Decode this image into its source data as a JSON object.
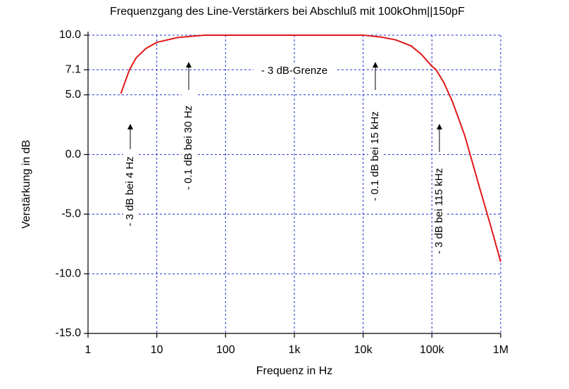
{
  "chart_data": {
    "type": "line",
    "title": "Frequenzgang des Line-Verstärkers bei Abschluß mit 100kOhm||150pF",
    "x_label": "Frequenz in Hz",
    "y_label": "Verstärkung in dB",
    "x_scale": "log",
    "grid": true,
    "x": [
      3,
      4,
      5,
      7,
      10,
      20,
      30,
      50,
      100,
      1000,
      10000,
      15000,
      20000,
      30000,
      50000,
      70000,
      100000,
      115000,
      150000,
      200000,
      300000,
      500000,
      700000,
      1000000
    ],
    "series": [
      {
        "name": "Verstärkung",
        "color": "#e01818",
        "values": [
          5.1,
          7.1,
          8.1,
          8.9,
          9.4,
          9.8,
          9.9,
          10.0,
          10.0,
          10.0,
          10.0,
          9.9,
          9.8,
          9.6,
          9.1,
          8.4,
          7.4,
          7.1,
          6.0,
          4.4,
          1.6,
          -2.9,
          -5.8,
          -9.0
        ]
      }
    ],
    "xlim": [
      1,
      1000000
    ],
    "xticks": [
      1,
      10,
      100,
      {
        "value": 1000,
        "label": "1k"
      },
      {
        "value": 10000,
        "label": "10k"
      },
      {
        "value": 100000,
        "label": "100k"
      },
      {
        "value": 1000000,
        "label": "1M"
      }
    ],
    "ylim": [
      -15,
      10
    ],
    "yticks": [
      {
        "value": 10,
        "label": "10.0"
      },
      7.1,
      {
        "value": 5,
        "label": "5.0"
      },
      {
        "value": 0,
        "label": "0.0"
      },
      {
        "value": -5,
        "label": "-5.0"
      },
      {
        "value": -10,
        "label": "-10.0"
      },
      {
        "value": -15,
        "label": "-15.0"
      }
    ],
    "annotations": [
      "- 3 dB bei 4 Hz",
      "- 0.1 dB bei 30 Hz",
      "- 3 dB-Grenze",
      "- 0.1 dB bei 15 kHz",
      "- 3 dB bei 115 kHz"
    ]
  }
}
